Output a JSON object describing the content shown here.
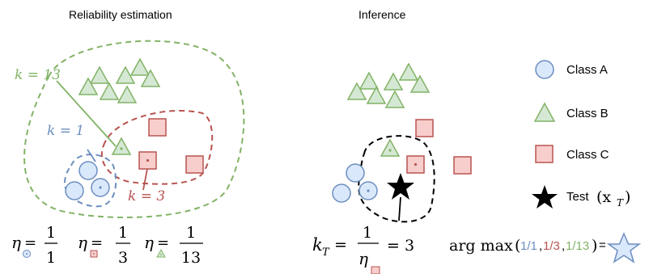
{
  "titles": {
    "left": "Reliability estimation",
    "right": "Inference"
  },
  "left_panel": {
    "k_labels": {
      "green": "k = 13",
      "blue": "k = 1",
      "red": "k = 3"
    },
    "eta_values": {
      "circle": {
        "num": "1",
        "den": "1"
      },
      "square": {
        "num": "1",
        "den": "3"
      },
      "triangle": {
        "num": "1",
        "den": "13"
      }
    }
  },
  "right_panel": {
    "kt_formula": {
      "lhs": "k",
      "sub": "T",
      "num": "1",
      "den": "η",
      "result": "= 3"
    },
    "argmax": {
      "label": "arg max",
      "open": "(",
      "v1": "1/1",
      "comma1": ",",
      "v2": "1/3",
      "comma2": ",",
      "v3": "1/13",
      "close": ")",
      "equals": "="
    }
  },
  "legend": [
    {
      "shape": "circle",
      "label": "Class A"
    },
    {
      "shape": "triangle",
      "label": "Class B"
    },
    {
      "shape": "square",
      "label": "Class C"
    },
    {
      "shape": "star",
      "label": "Test"
    }
  ],
  "legend_test_math": "(x",
  "legend_test_sub": "T",
  "legend_test_close": ")",
  "colors": {
    "classA_fill": "#dae8fc",
    "classA_stroke": "#6c8ebf",
    "classB_fill": "#d5e8d4",
    "classB_stroke": "#82b366",
    "classC_fill": "#f8cecc",
    "classC_stroke": "#b85450",
    "green_text": "#82b366",
    "blue_text": "#6c8ebf",
    "red_text": "#b85450"
  }
}
